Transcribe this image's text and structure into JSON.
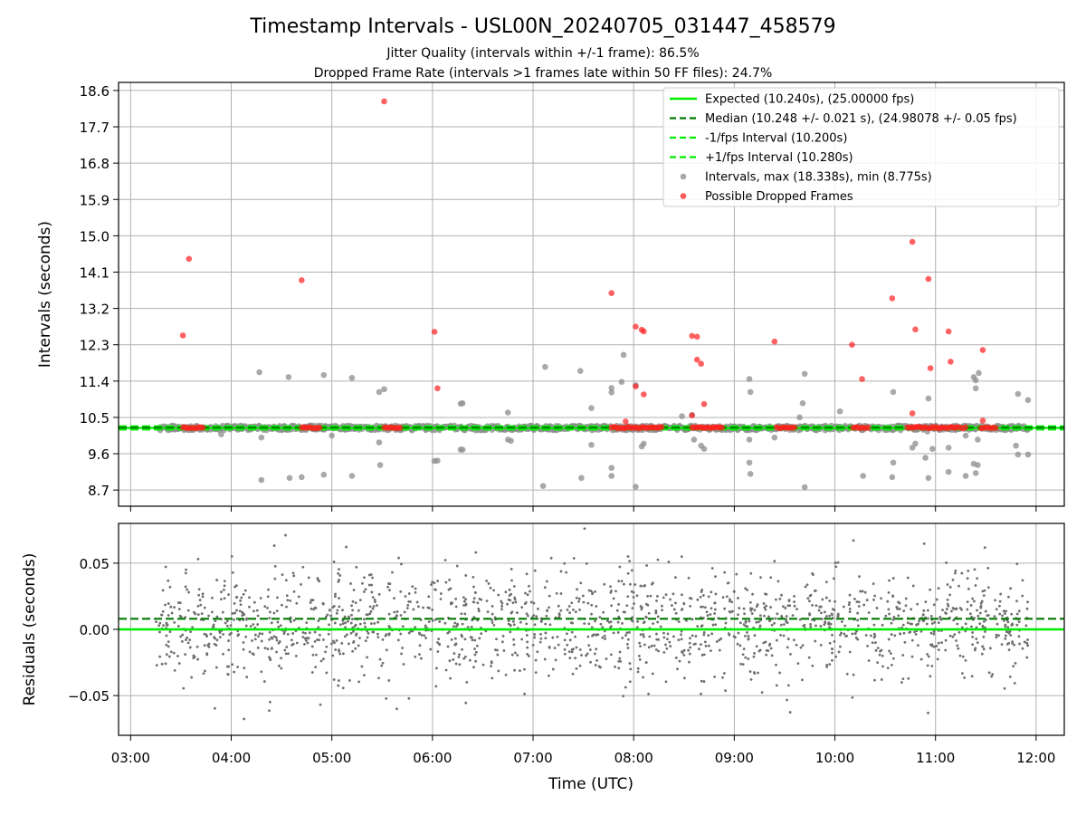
{
  "figure": {
    "title": "Timestamp Intervals - USL00N_20240705_031447_458579",
    "subtitle_1": "Jitter Quality (intervals within +/-1 frame): 86.5%",
    "subtitle_2": "Dropped Frame Rate (intervals >1 frames late within 50 FF files): 24.7%",
    "colors": {
      "expected": "#00ee00",
      "median": "#007a00",
      "interval_bound": "#00ee00",
      "points": "#8c8c8c",
      "dropped": "#ff2020",
      "residuals": "#6e6e6e",
      "grid": "#b0b0b0"
    }
  },
  "chart_data": [
    {
      "id": "intervals",
      "type": "scatter",
      "ylabel": "Intervals (seconds)",
      "xlabel": "",
      "xlim_hours": [
        2.88,
        12.28
      ],
      "ylim": [
        8.3,
        18.8
      ],
      "x_ticks_hours": [
        3,
        4,
        5,
        6,
        7,
        8,
        9,
        10,
        11,
        12
      ],
      "y_ticks": [
        8.7,
        9.6,
        10.5,
        11.4,
        12.3,
        13.2,
        14.1,
        15.0,
        15.9,
        16.8,
        17.7,
        18.6
      ],
      "y_tick_labels": [
        "8.7",
        "9.6",
        "10.5",
        "11.4",
        "12.3",
        "13.2",
        "14.1",
        "15.0",
        "15.9",
        "16.8",
        "17.7",
        "18.6"
      ],
      "grid": true,
      "legend_position": "top-right",
      "lines": {
        "expected": 10.24,
        "median": 10.248,
        "minus_interval": 10.2,
        "plus_interval": 10.28
      },
      "legend": [
        {
          "key": "expected",
          "label": "Expected (10.240s), (25.00000 fps)",
          "marker": "solid-line"
        },
        {
          "key": "median",
          "label": "Median (10.248 +/- 0.021 s), (24.98078 +/- 0.05 fps)",
          "marker": "dashed-line"
        },
        {
          "key": "minus_interval",
          "label": "-1/fps Interval (10.200s)",
          "marker": "dashed-line"
        },
        {
          "key": "plus_interval",
          "label": "+1/fps Interval (10.280s)",
          "marker": "dashed-line"
        },
        {
          "key": "points",
          "label": "Intervals, max (18.338s), min (8.775s)",
          "marker": "dot"
        },
        {
          "key": "dropped",
          "label": "Possible Dropped Frames",
          "marker": "dot"
        }
      ],
      "dense_band": {
        "x_start_hours": 3.28,
        "x_end_hours": 11.92,
        "y_center": 10.24,
        "y_spread": 0.06
      },
      "outliers": [
        [
          4.28,
          11.62
        ],
        [
          4.57,
          11.5
        ],
        [
          4.92,
          11.55
        ],
        [
          5.2,
          11.48
        ],
        [
          5.47,
          11.13
        ],
        [
          5.52,
          11.2
        ],
        [
          6.3,
          10.85
        ],
        [
          6.28,
          10.84
        ],
        [
          6.75,
          10.62
        ],
        [
          7.12,
          11.75
        ],
        [
          7.47,
          11.65
        ],
        [
          7.58,
          10.73
        ],
        [
          7.78,
          11.23
        ],
        [
          7.78,
          11.12
        ],
        [
          7.9,
          12.05
        ],
        [
          7.88,
          11.38
        ],
        [
          8.02,
          11.3
        ],
        [
          8.48,
          10.53
        ],
        [
          8.58,
          10.56
        ],
        [
          9.15,
          11.45
        ],
        [
          9.16,
          11.13
        ],
        [
          9.7,
          11.58
        ],
        [
          9.68,
          10.85
        ],
        [
          9.65,
          10.5
        ],
        [
          10.05,
          10.65
        ],
        [
          10.58,
          11.13
        ],
        [
          10.93,
          10.97
        ],
        [
          11.38,
          11.5
        ],
        [
          11.43,
          11.6
        ],
        [
          11.4,
          11.22
        ],
        [
          11.4,
          11.42
        ],
        [
          11.82,
          11.08
        ],
        [
          11.92,
          10.93
        ],
        [
          4.3,
          8.95
        ],
        [
          4.58,
          9.0
        ],
        [
          4.7,
          9.02
        ],
        [
          4.92,
          9.08
        ],
        [
          5.2,
          9.05
        ],
        [
          5.48,
          9.32
        ],
        [
          6.02,
          9.42
        ],
        [
          6.05,
          9.43
        ],
        [
          6.28,
          9.7
        ],
        [
          6.3,
          9.7
        ],
        [
          7.1,
          8.8
        ],
        [
          7.48,
          9.0
        ],
        [
          7.58,
          9.82
        ],
        [
          7.78,
          9.25
        ],
        [
          7.78,
          9.05
        ],
        [
          8.02,
          8.78
        ],
        [
          8.08,
          9.78
        ],
        [
          8.1,
          9.85
        ],
        [
          8.67,
          9.8
        ],
        [
          8.7,
          9.72
        ],
        [
          9.15,
          9.38
        ],
        [
          9.16,
          9.1
        ],
        [
          9.7,
          8.77
        ],
        [
          10.28,
          9.05
        ],
        [
          10.58,
          9.38
        ],
        [
          10.57,
          9.02
        ],
        [
          10.77,
          9.75
        ],
        [
          10.8,
          9.85
        ],
        [
          10.9,
          9.5
        ],
        [
          10.93,
          9.0
        ],
        [
          10.97,
          9.72
        ],
        [
          11.13,
          9.15
        ],
        [
          11.13,
          9.75
        ],
        [
          11.3,
          9.05
        ],
        [
          11.38,
          9.35
        ],
        [
          11.42,
          9.32
        ],
        [
          11.4,
          9.12
        ],
        [
          11.82,
          9.58
        ],
        [
          11.8,
          9.8
        ],
        [
          11.92,
          9.58
        ],
        [
          11.3,
          10.05
        ],
        [
          11.42,
          9.95
        ],
        [
          10.92,
          10.15
        ],
        [
          9.15,
          9.95
        ],
        [
          8.6,
          9.95
        ],
        [
          5.47,
          9.88
        ],
        [
          6.75,
          9.95
        ],
        [
          3.9,
          10.08
        ],
        [
          4.3,
          10.0
        ],
        [
          5.0,
          10.05
        ],
        [
          6.78,
          9.92
        ],
        [
          9.4,
          10.0
        ]
      ],
      "dropped_dense_ranges": [
        [
          3.52,
          3.72
        ],
        [
          4.7,
          4.88
        ],
        [
          5.52,
          5.68
        ],
        [
          7.78,
          8.28
        ],
        [
          8.58,
          8.88
        ],
        [
          9.42,
          9.6
        ],
        [
          10.18,
          10.33
        ],
        [
          10.72,
          11.2
        ],
        [
          11.22,
          11.3
        ],
        [
          11.45,
          11.6
        ]
      ],
      "dropped_outliers": [
        [
          3.52,
          12.53
        ],
        [
          3.58,
          14.43
        ],
        [
          4.7,
          13.9
        ],
        [
          5.52,
          18.33
        ],
        [
          6.02,
          12.62
        ],
        [
          6.05,
          11.22
        ],
        [
          7.78,
          13.58
        ],
        [
          8.02,
          12.75
        ],
        [
          8.08,
          12.67
        ],
        [
          8.1,
          12.63
        ],
        [
          8.02,
          11.27
        ],
        [
          8.1,
          11.07
        ],
        [
          7.92,
          10.4
        ],
        [
          8.58,
          12.52
        ],
        [
          8.63,
          12.5
        ],
        [
          8.63,
          11.93
        ],
        [
          8.67,
          11.83
        ],
        [
          8.7,
          10.83
        ],
        [
          8.58,
          10.55
        ],
        [
          9.4,
          12.38
        ],
        [
          10.17,
          12.3
        ],
        [
          10.27,
          11.45
        ],
        [
          10.57,
          13.45
        ],
        [
          10.77,
          14.85
        ],
        [
          10.8,
          12.68
        ],
        [
          10.77,
          10.6
        ],
        [
          10.93,
          13.93
        ],
        [
          10.95,
          11.72
        ],
        [
          11.13,
          12.63
        ],
        [
          11.15,
          11.88
        ],
        [
          11.47,
          12.17
        ],
        [
          11.47,
          10.42
        ]
      ]
    },
    {
      "id": "residuals",
      "type": "scatter",
      "ylabel": "Residuals (seconds)",
      "xlabel": "Time (UTC)",
      "xlim_hours": [
        2.88,
        12.28
      ],
      "ylim": [
        -0.08,
        0.08
      ],
      "x_ticks_hours": [
        3,
        4,
        5,
        6,
        7,
        8,
        9,
        10,
        11,
        12
      ],
      "x_tick_labels": [
        "03:00",
        "04:00",
        "05:00",
        "06:00",
        "07:00",
        "08:00",
        "09:00",
        "10:00",
        "11:00",
        "12:00"
      ],
      "y_ticks": [
        -0.05,
        0.0,
        0.05
      ],
      "y_tick_labels": [
        "−0.05",
        "0.00",
        "0.05"
      ],
      "grid": true,
      "lines": {
        "expected": 0.0,
        "median": 0.008
      },
      "cloud": {
        "x_start_hours": 3.25,
        "x_end_hours": 11.92,
        "sigma": 0.021,
        "count": 1700
      }
    }
  ]
}
